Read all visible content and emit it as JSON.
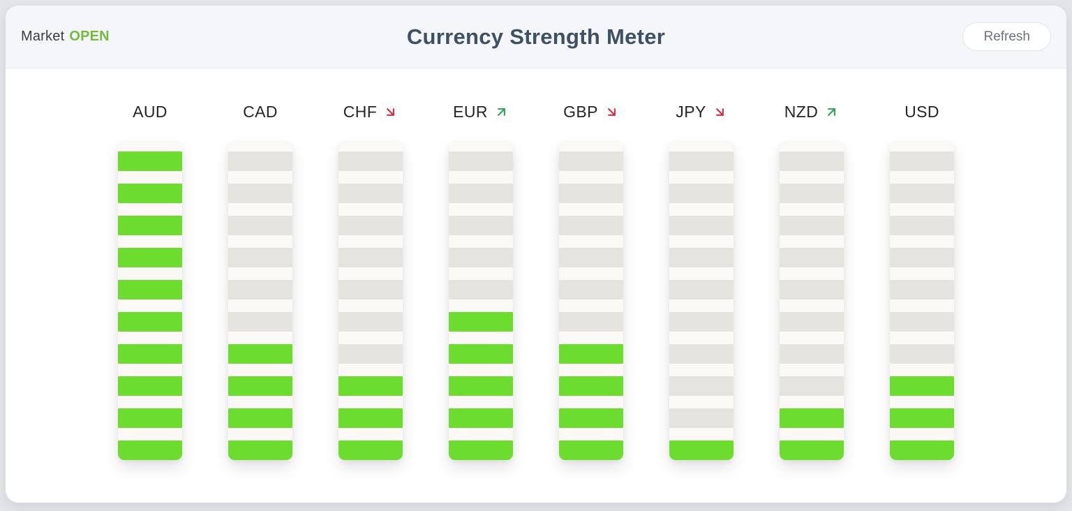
{
  "header": {
    "market_label": "Market",
    "market_status": "OPEN",
    "title": "Currency Strength Meter",
    "refresh_label": "Refresh"
  },
  "icons": {
    "trend_up_glyph": "↗",
    "trend_down_glyph": "↘"
  },
  "meter": {
    "total_segments": 10,
    "currencies": [
      {
        "code": "AUD",
        "strength": 10,
        "trend": "none"
      },
      {
        "code": "CAD",
        "strength": 4,
        "trend": "none"
      },
      {
        "code": "CHF",
        "strength": 3,
        "trend": "down"
      },
      {
        "code": "EUR",
        "strength": 5,
        "trend": "up"
      },
      {
        "code": "GBP",
        "strength": 4,
        "trend": "down"
      },
      {
        "code": "JPY",
        "strength": 1,
        "trend": "down"
      },
      {
        "code": "NZD",
        "strength": 2,
        "trend": "up"
      },
      {
        "code": "USD",
        "strength": 3,
        "trend": "none"
      }
    ]
  },
  "chart_data": {
    "type": "bar",
    "title": "Currency Strength Meter",
    "categories": [
      "AUD",
      "CAD",
      "CHF",
      "EUR",
      "GBP",
      "JPY",
      "NZD",
      "USD"
    ],
    "values": [
      10,
      4,
      3,
      5,
      4,
      1,
      2,
      3
    ],
    "value_unit": "lit segments out of 10",
    "trends": [
      "none",
      "none",
      "down",
      "up",
      "down",
      "down",
      "up",
      "none"
    ],
    "ylim": [
      0,
      10
    ],
    "legend": "none",
    "colors": {
      "segment_on": "#6cdd2f",
      "segment_off": "#e6e4de",
      "bar_background": "#faf9f6",
      "trend_up": "#2e9e5b",
      "trend_down": "#d92a3f",
      "status_open": "#74bd3c",
      "title": "#3c5165",
      "header_background": "#f4f6fa"
    }
  }
}
